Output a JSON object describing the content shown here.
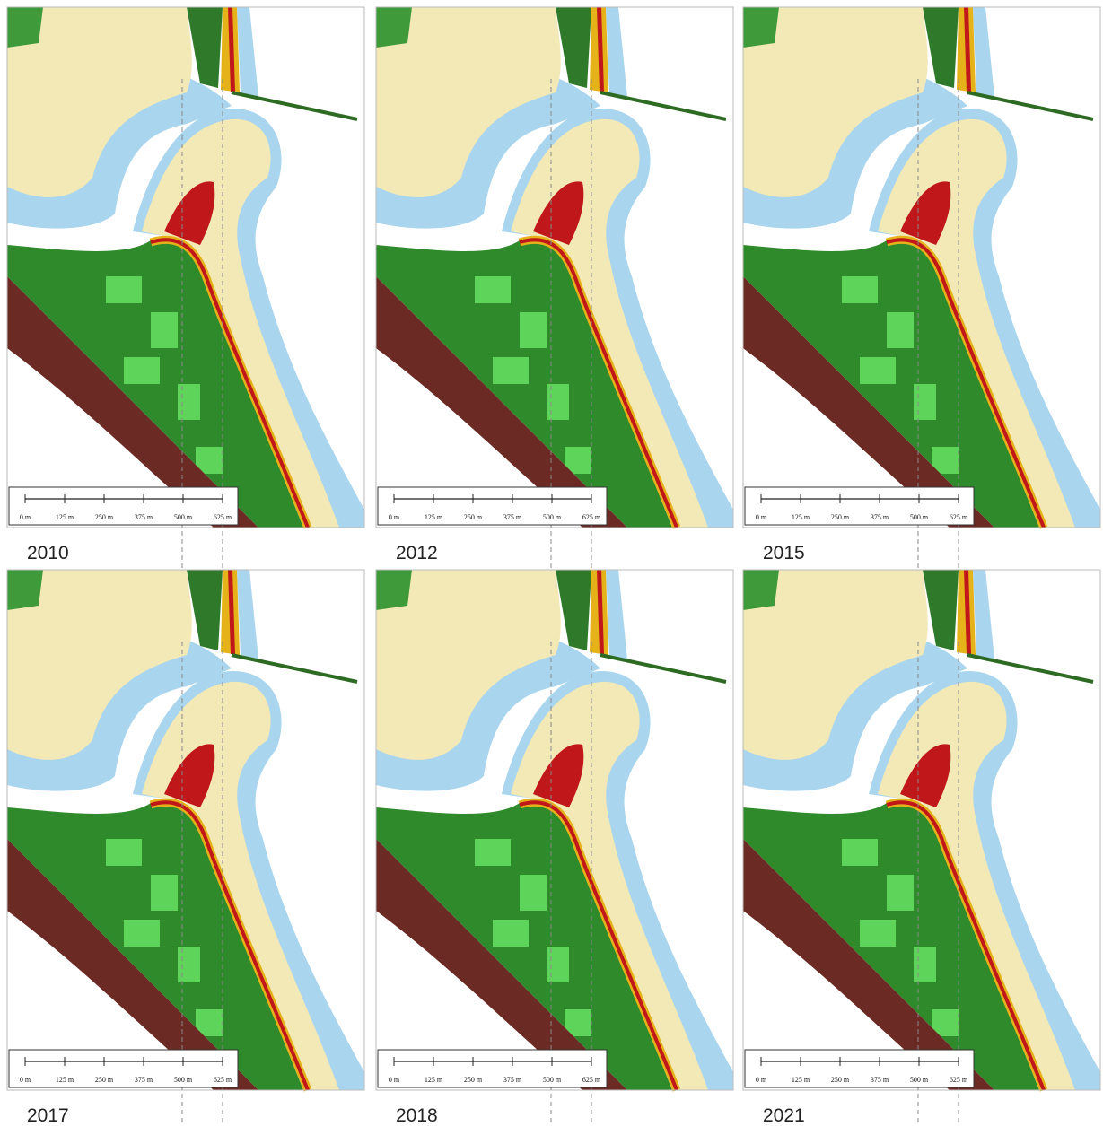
{
  "panels": [
    {
      "year": "2010",
      "scale_labels": [
        "0 m",
        "125 m",
        "250 m",
        "375 m",
        "500 m",
        "625 m"
      ]
    },
    {
      "year": "2012",
      "scale_labels": [
        "0 m",
        "125 m",
        "250 m",
        "375 m",
        "500 m",
        "625 m"
      ]
    },
    {
      "year": "2015",
      "scale_labels": [
        "0 m",
        "125 m",
        "250 m",
        "375 m",
        "500 m",
        "625 m"
      ]
    },
    {
      "year": "2017",
      "scale_labels": [
        "0 m",
        "125 m",
        "250 m",
        "375 m",
        "500 m",
        "625 m"
      ]
    },
    {
      "year": "2018",
      "scale_labels": [
        "0 m",
        "125 m",
        "250 m",
        "375 m",
        "500 m",
        "625 m"
      ]
    },
    {
      "year": "2021",
      "scale_labels": [
        "0 m",
        "125 m",
        "250 m",
        "375 m",
        "500 m",
        "625 m"
      ]
    }
  ]
}
